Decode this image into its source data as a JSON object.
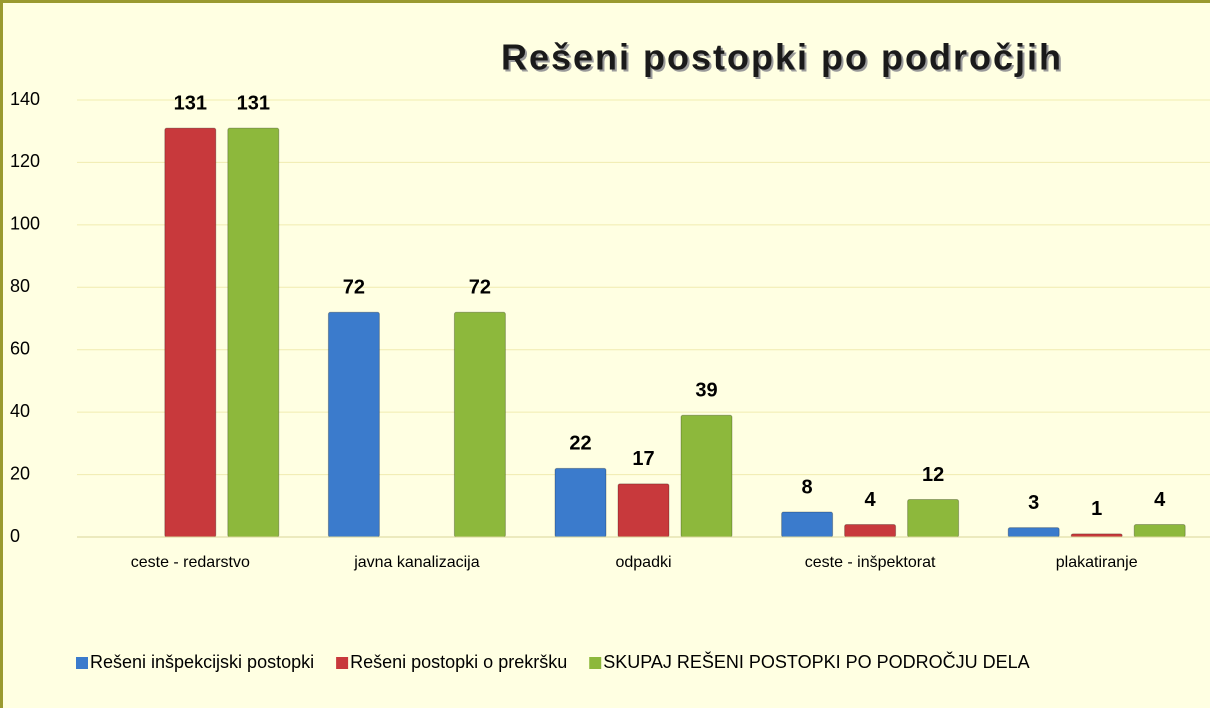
{
  "chart_data": {
    "type": "bar",
    "title": "Rešeni postopki po področjih",
    "categories": [
      "ceste - redarstvo",
      "javna kanalizacija",
      "odpadki",
      "ceste - inšpektorat",
      "plakatiranje"
    ],
    "series": [
      {
        "name": "Rešeni inšpekcijski postopki",
        "color": "#3b7bcc",
        "values": [
          null,
          72,
          22,
          8,
          3
        ]
      },
      {
        "name": "Rešeni postopki o prekršku",
        "color": "#c8393c",
        "values": [
          131,
          null,
          17,
          4,
          1
        ]
      },
      {
        "name": "SKUPAJ REŠENI POSTOPKI PO PODROČJU DELA",
        "color": "#8db83c",
        "values": [
          131,
          72,
          39,
          12,
          4
        ]
      }
    ],
    "ylim": [
      0,
      140
    ],
    "yticks": [
      0,
      20,
      40,
      60,
      80,
      100,
      120,
      140
    ],
    "grid": true,
    "legend": "bottom"
  }
}
